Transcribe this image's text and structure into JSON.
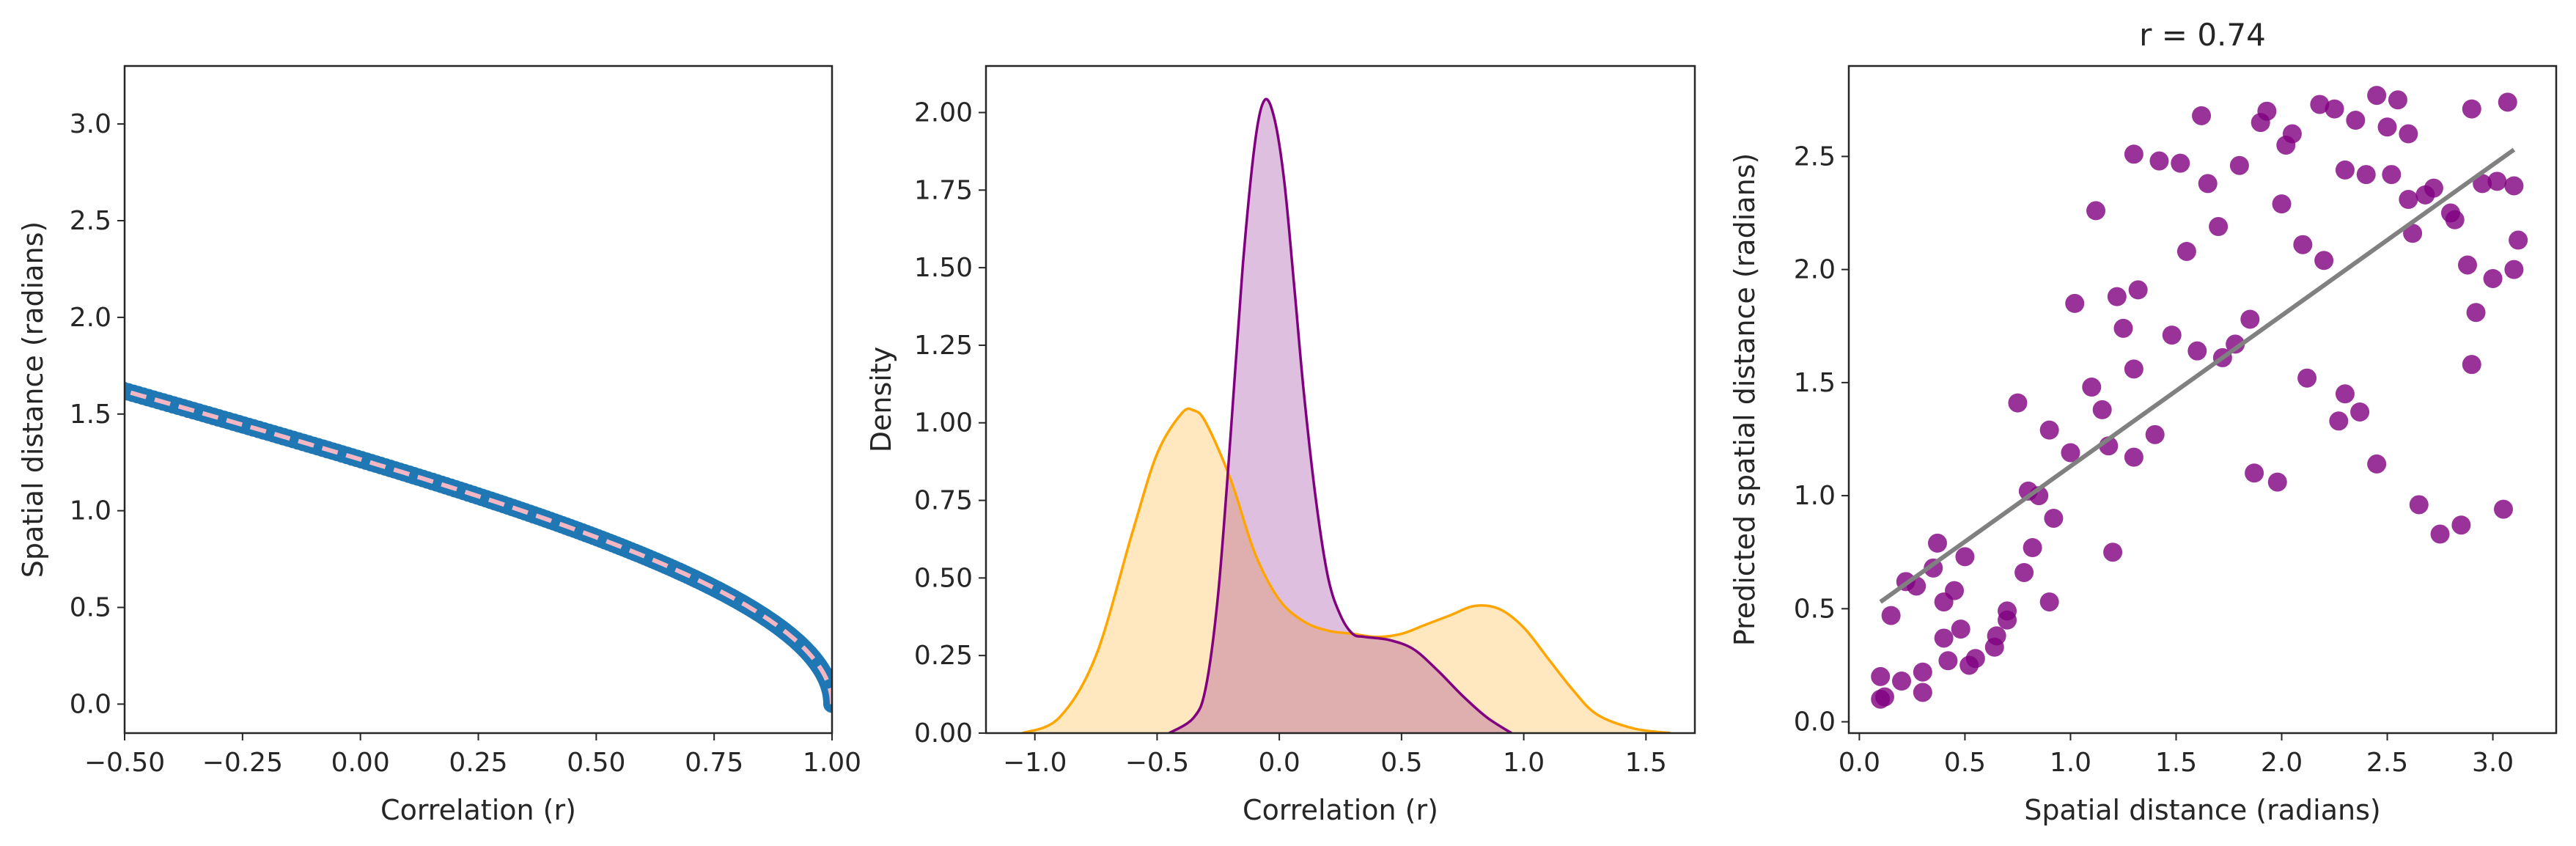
{
  "chart_data": [
    {
      "type": "scatter",
      "title": "",
      "xlabel": "Correlation (r)",
      "ylabel": "Spatial distance (radians)",
      "xlim": [
        -0.5,
        1.0
      ],
      "ylim": [
        -0.15,
        3.3
      ],
      "xticks": [
        "−0.50",
        "−0.25",
        "0.00",
        "0.25",
        "0.50",
        "0.75",
        "1.00"
      ],
      "xtick_values": [
        -0.5,
        -0.25,
        0,
        0.25,
        0.5,
        0.75,
        1.0
      ],
      "yticks": [
        "0.0",
        "0.5",
        "1.0",
        "1.5",
        "2.0",
        "2.5",
        "3.0"
      ],
      "ytick_values": [
        0,
        0.5,
        1.0,
        1.5,
        2.0,
        2.5,
        3.0
      ],
      "grid": false,
      "series": [
        {
          "kind": "points",
          "color": "#1f77b4",
          "relation": "x = cos(y) - 0.43 * (1 - cos(y))",
          "y_range": [
            0.0,
            3.14
          ]
        },
        {
          "kind": "dashed-line",
          "color": "#f4b6c2",
          "relation": "x = cos(y) - 0.43 * (1 - cos(y))",
          "y_range": [
            0.0,
            2.82
          ]
        }
      ]
    },
    {
      "type": "area",
      "title": "",
      "xlabel": "Correlation (r)",
      "ylabel": "Density",
      "xlim": [
        -1.2,
        1.7
      ],
      "ylim": [
        0,
        2.15
      ],
      "xticks": [
        "−1.0",
        "−0.5",
        "0.0",
        "0.5",
        "1.0",
        "1.5"
      ],
      "xtick_values": [
        -1.0,
        -0.5,
        0,
        0.5,
        1.0,
        1.5
      ],
      "yticks": [
        "0.00",
        "0.25",
        "0.50",
        "0.75",
        "1.00",
        "1.25",
        "1.50",
        "1.75",
        "2.00"
      ],
      "ytick_values": [
        0,
        0.25,
        0.5,
        0.75,
        1.0,
        1.25,
        1.5,
        1.75,
        2.0
      ],
      "grid": false,
      "series": [
        {
          "color": "#ffa500",
          "x": [
            -1.05,
            -0.9,
            -0.75,
            -0.6,
            -0.5,
            -0.4,
            -0.35,
            -0.3,
            -0.2,
            -0.1,
            0.0,
            0.1,
            0.2,
            0.3,
            0.4,
            0.5,
            0.6,
            0.7,
            0.8,
            0.9,
            1.0,
            1.1,
            1.2,
            1.3,
            1.45,
            1.6
          ],
          "y": [
            0.0,
            0.05,
            0.25,
            0.65,
            0.9,
            1.03,
            1.04,
            1.0,
            0.82,
            0.58,
            0.43,
            0.36,
            0.33,
            0.32,
            0.31,
            0.32,
            0.35,
            0.38,
            0.41,
            0.4,
            0.34,
            0.24,
            0.14,
            0.06,
            0.015,
            0.0
          ]
        },
        {
          "color": "#800080",
          "x": [
            -0.45,
            -0.35,
            -0.3,
            -0.25,
            -0.2,
            -0.15,
            -0.1,
            -0.06,
            -0.02,
            0.02,
            0.06,
            0.1,
            0.15,
            0.2,
            0.25,
            0.3,
            0.35,
            0.45,
            0.55,
            0.65,
            0.75,
            0.85,
            0.95
          ],
          "y": [
            0.0,
            0.05,
            0.15,
            0.45,
            0.95,
            1.5,
            1.9,
            2.04,
            1.98,
            1.78,
            1.45,
            1.1,
            0.75,
            0.5,
            0.38,
            0.32,
            0.31,
            0.3,
            0.27,
            0.2,
            0.12,
            0.05,
            0.0
          ]
        }
      ]
    },
    {
      "type": "scatter",
      "title": "r = 0.74",
      "xlabel": "Spatial distance (radians)",
      "ylabel": "Predicted spatial distance (radians)",
      "xlim": [
        -0.05,
        3.3
      ],
      "ylim": [
        -0.05,
        2.9
      ],
      "xticks": [
        "0.0",
        "0.5",
        "1.0",
        "1.5",
        "2.0",
        "2.5",
        "3.0"
      ],
      "xtick_values": [
        0,
        0.5,
        1.0,
        1.5,
        2.0,
        2.5,
        3.0
      ],
      "yticks": [
        "0.0",
        "0.5",
        "1.0",
        "1.5",
        "2.0",
        "2.5"
      ],
      "ytick_values": [
        0,
        0.5,
        1.0,
        1.5,
        2.0,
        2.5
      ],
      "grid": false,
      "series": [
        {
          "kind": "points",
          "color": "#800080",
          "x": [
            0.1,
            0.1,
            0.12,
            0.15,
            0.2,
            0.22,
            0.27,
            0.3,
            0.3,
            0.35,
            0.37,
            0.4,
            0.4,
            0.42,
            0.45,
            0.48,
            0.5,
            0.52,
            0.55,
            0.64,
            0.65,
            0.7,
            0.7,
            0.75,
            0.78,
            0.8,
            0.82,
            0.85,
            0.9,
            0.9,
            0.92,
            1.0,
            1.02,
            1.1,
            1.12,
            1.15,
            1.18,
            1.2,
            1.22,
            1.25,
            1.3,
            1.3,
            1.3,
            1.32,
            1.4,
            1.42,
            1.48,
            1.52,
            1.55,
            1.6,
            1.62,
            1.65,
            1.7,
            1.72,
            1.78,
            1.8,
            1.85,
            1.87,
            1.9,
            1.93,
            1.98,
            2.0,
            2.02,
            2.05,
            2.1,
            2.12,
            2.18,
            2.2,
            2.25,
            2.27,
            2.3,
            2.3,
            2.35,
            2.37,
            2.4,
            2.45,
            2.45,
            2.5,
            2.52,
            2.55,
            2.6,
            2.6,
            2.62,
            2.65,
            2.68,
            2.72,
            2.75,
            2.8,
            2.82,
            2.85,
            2.88,
            2.9,
            2.9,
            2.92,
            2.95,
            3.0,
            3.02,
            3.05,
            3.07,
            3.1,
            3.1,
            3.12
          ],
          "y": [
            0.2,
            0.1,
            0.11,
            0.47,
            0.18,
            0.62,
            0.6,
            0.22,
            0.13,
            0.68,
            0.79,
            0.53,
            0.37,
            0.27,
            0.58,
            0.41,
            0.73,
            0.25,
            0.28,
            0.33,
            0.38,
            0.49,
            0.45,
            1.41,
            0.66,
            1.02,
            0.77,
            1.0,
            0.53,
            1.29,
            0.9,
            1.19,
            1.85,
            1.48,
            2.26,
            1.38,
            1.22,
            0.75,
            1.88,
            1.74,
            1.17,
            1.56,
            2.51,
            1.91,
            1.27,
            2.48,
            1.71,
            2.47,
            2.08,
            1.64,
            2.68,
            2.38,
            2.19,
            1.61,
            1.67,
            2.46,
            1.78,
            1.1,
            2.65,
            2.7,
            1.06,
            2.29,
            2.55,
            2.6,
            2.11,
            1.52,
            2.73,
            2.04,
            2.71,
            1.33,
            2.44,
            1.45,
            2.66,
            1.37,
            2.42,
            2.77,
            1.14,
            2.63,
            2.42,
            2.75,
            2.31,
            2.6,
            2.16,
            0.96,
            2.33,
            2.36,
            0.83,
            2.25,
            2.22,
            0.87,
            2.02,
            2.71,
            1.58,
            1.81,
            2.38,
            1.96,
            2.39,
            0.94,
            2.74,
            2.37,
            2.0,
            2.13
          ]
        },
        {
          "kind": "fit-line",
          "color": "#808080",
          "x": [
            0.1,
            3.1
          ],
          "y": [
            0.53,
            2.53
          ]
        }
      ]
    }
  ]
}
